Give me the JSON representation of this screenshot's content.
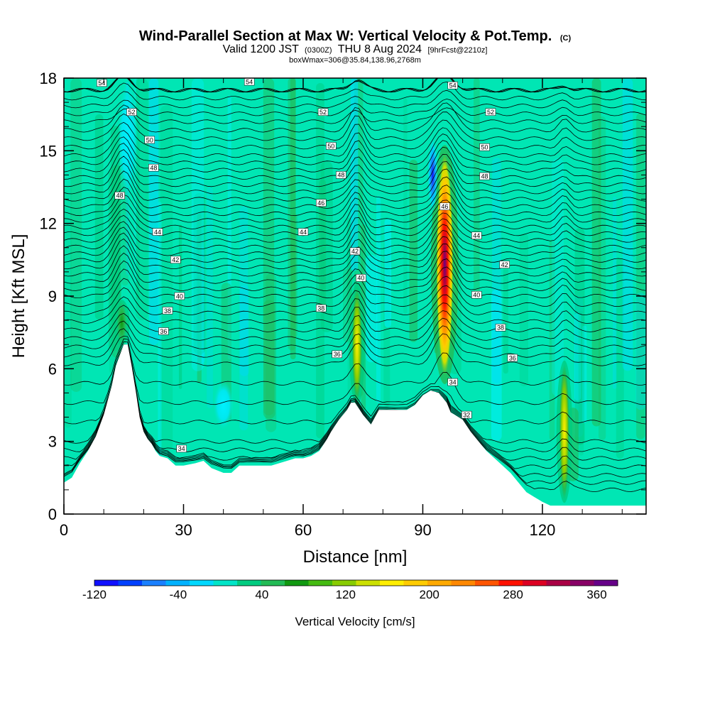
{
  "chart_data": {
    "type": "heatmap",
    "title": "Wind-Parallel Section at Max W: Vertical Velocity & Pot.Temp.",
    "title_mark": "(C)",
    "subtitle_main": "Valid 1200 JST",
    "subtitle_z": "(0300Z)",
    "subtitle_date": "THU 8 Aug 2024",
    "subtitle_fcst": "[9hrFcst@2210z]",
    "subtitle2": "boxWmax=306@35.84,138.96,2768m",
    "xlabel": "Distance [nm]",
    "ylabel": "Height [Kft MSL]",
    "xlim": [
      0,
      146
    ],
    "ylim": [
      0,
      18
    ],
    "x_ticks": [
      "0",
      "30",
      "60",
      "90",
      "120"
    ],
    "x_tick_values": [
      0,
      30,
      60,
      90,
      120
    ],
    "y_ticks": [
      "0",
      "3",
      "6",
      "9",
      "12",
      "15",
      "18"
    ],
    "y_tick_values": [
      0,
      3,
      6,
      9,
      12,
      15,
      18
    ],
    "colorbar": {
      "label": "Vertical Velocity [cm/s]",
      "min": -120,
      "max": 380,
      "tick_labels": [
        "-120",
        "-40",
        "40",
        "120",
        "200",
        "280",
        "360"
      ],
      "tick_values": [
        -120,
        -40,
        40,
        120,
        200,
        280,
        360
      ],
      "colors": [
        "#1010ff",
        "#0040ff",
        "#1a80ff",
        "#00b2ff",
        "#00d8ff",
        "#00e5c8",
        "#00cc80",
        "#22bb55",
        "#119911",
        "#44bb11",
        "#88cc00",
        "#cce000",
        "#ffee00",
        "#ffcc00",
        "#ffaa00",
        "#ff8800",
        "#ff5500",
        "#ff1100",
        "#dd0022",
        "#aa0044",
        "#880066",
        "#660088"
      ]
    },
    "background_fill": "#00e6b4",
    "terrain_profile": {
      "x": [
        0,
        2,
        4,
        6,
        8,
        10,
        12,
        13,
        15,
        16,
        17,
        18,
        19,
        20,
        21,
        22,
        23,
        24,
        26,
        28,
        30,
        33,
        35,
        37,
        40,
        42,
        44,
        46,
        48,
        50,
        52,
        54,
        56,
        58,
        60,
        62,
        64,
        66,
        67,
        69,
        71,
        72,
        73,
        75,
        77,
        79,
        82,
        84,
        86,
        88,
        90,
        92,
        94,
        96,
        97,
        98,
        100,
        102,
        104,
        106,
        108,
        110,
        112,
        114,
        116,
        118,
        120,
        122,
        124,
        125,
        126,
        128,
        130,
        132,
        134,
        136,
        138,
        140,
        142,
        144,
        146
      ],
      "height": [
        1.3,
        1.5,
        2.1,
        2.6,
        3.2,
        4.1,
        5.3,
        6.1,
        7.0,
        7.0,
        6.1,
        5.1,
        4.0,
        3.4,
        3.1,
        2.9,
        2.6,
        2.4,
        2.3,
        2.0,
        2.0,
        2.1,
        2.2,
        1.9,
        1.7,
        1.7,
        2.0,
        2.0,
        2.0,
        2.0,
        2.0,
        2.1,
        2.2,
        2.3,
        2.3,
        2.4,
        2.6,
        3.1,
        3.4,
        3.9,
        4.3,
        4.6,
        4.6,
        4.1,
        3.7,
        4.3,
        4.3,
        4.3,
        4.3,
        4.5,
        4.9,
        5.1,
        5.0,
        4.6,
        4.2,
        4.1,
        3.9,
        3.4,
        3.0,
        2.6,
        2.3,
        2.0,
        1.7,
        1.3,
        0.9,
        0.7,
        0.5,
        0.35,
        0.35,
        0.35,
        0.35,
        0.35,
        0.35,
        0.35,
        0.35,
        0.35,
        0.35,
        0.35,
        0.35,
        0.35,
        0.35
      ]
    },
    "updraft_cores": [
      {
        "x": 95.5,
        "y_bottom": 5.6,
        "y_top": 15.0,
        "peak_cm_s": 360
      },
      {
        "x": 73.5,
        "y_bottom": 4.6,
        "y_top": 9.4,
        "peak_cm_s": 130
      },
      {
        "x": 125.5,
        "y_bottom": 0.6,
        "y_top": 6.2,
        "peak_cm_s": 130
      },
      {
        "x": 14.5,
        "y_bottom": 7.0,
        "y_top": 8.8,
        "peak_cm_s": 40
      }
    ],
    "downdraft_cores": [
      {
        "x": 92.5,
        "y_bottom": 12.4,
        "y_top": 15.6,
        "min_cm_s": -120
      },
      {
        "x": 16.0,
        "y_bottom": 13.0,
        "y_top": 18.0,
        "min_cm_s": -40
      },
      {
        "x": 40.0,
        "y_bottom": 3.5,
        "y_top": 5.5,
        "min_cm_s": -40
      }
    ],
    "theta_contours": {
      "levels": [
        32,
        34,
        36,
        38,
        40,
        42,
        44,
        46,
        48,
        50,
        52,
        54
      ],
      "labels": [
        {
          "text": "54",
          "x": 9.5,
          "y": 17.8
        },
        {
          "text": "54",
          "x": 46.5,
          "y": 17.85
        },
        {
          "text": "54",
          "x": 97.5,
          "y": 17.7
        },
        {
          "text": "52",
          "x": 17,
          "y": 16.6
        },
        {
          "text": "52",
          "x": 65,
          "y": 16.6
        },
        {
          "text": "52",
          "x": 107,
          "y": 16.6
        },
        {
          "text": "50",
          "x": 21.5,
          "y": 15.45
        },
        {
          "text": "50",
          "x": 67,
          "y": 15.2
        },
        {
          "text": "50",
          "x": 105.5,
          "y": 15.15
        },
        {
          "text": "48",
          "x": 22.5,
          "y": 14.3
        },
        {
          "text": "48",
          "x": 69.5,
          "y": 14.0
        },
        {
          "text": "48",
          "x": 105.5,
          "y": 13.95
        },
        {
          "text": "48",
          "x": 14,
          "y": 13.15
        },
        {
          "text": "46",
          "x": 64.5,
          "y": 12.85
        },
        {
          "text": "46",
          "x": 95.5,
          "y": 12.7
        },
        {
          "text": "44",
          "x": 23.5,
          "y": 11.65
        },
        {
          "text": "44",
          "x": 60,
          "y": 11.65
        },
        {
          "text": "44",
          "x": 103.5,
          "y": 11.5
        },
        {
          "text": "42",
          "x": 28,
          "y": 10.5
        },
        {
          "text": "42",
          "x": 73,
          "y": 10.85
        },
        {
          "text": "42",
          "x": 110.5,
          "y": 10.3
        },
        {
          "text": "40",
          "x": 29,
          "y": 9.0
        },
        {
          "text": "40",
          "x": 74.5,
          "y": 9.75
        },
        {
          "text": "40",
          "x": 103.5,
          "y": 9.05
        },
        {
          "text": "38",
          "x": 26,
          "y": 8.4
        },
        {
          "text": "38",
          "x": 64.5,
          "y": 8.5
        },
        {
          "text": "38",
          "x": 109.5,
          "y": 7.7
        },
        {
          "text": "36",
          "x": 25,
          "y": 7.55
        },
        {
          "text": "36",
          "x": 68.5,
          "y": 6.6
        },
        {
          "text": "36",
          "x": 112.5,
          "y": 6.45
        },
        {
          "text": "34",
          "x": 97.5,
          "y": 5.45
        },
        {
          "text": "34",
          "x": 29.5,
          "y": 2.7
        },
        {
          "text": "32",
          "x": 101,
          "y": 4.1
        }
      ]
    }
  }
}
